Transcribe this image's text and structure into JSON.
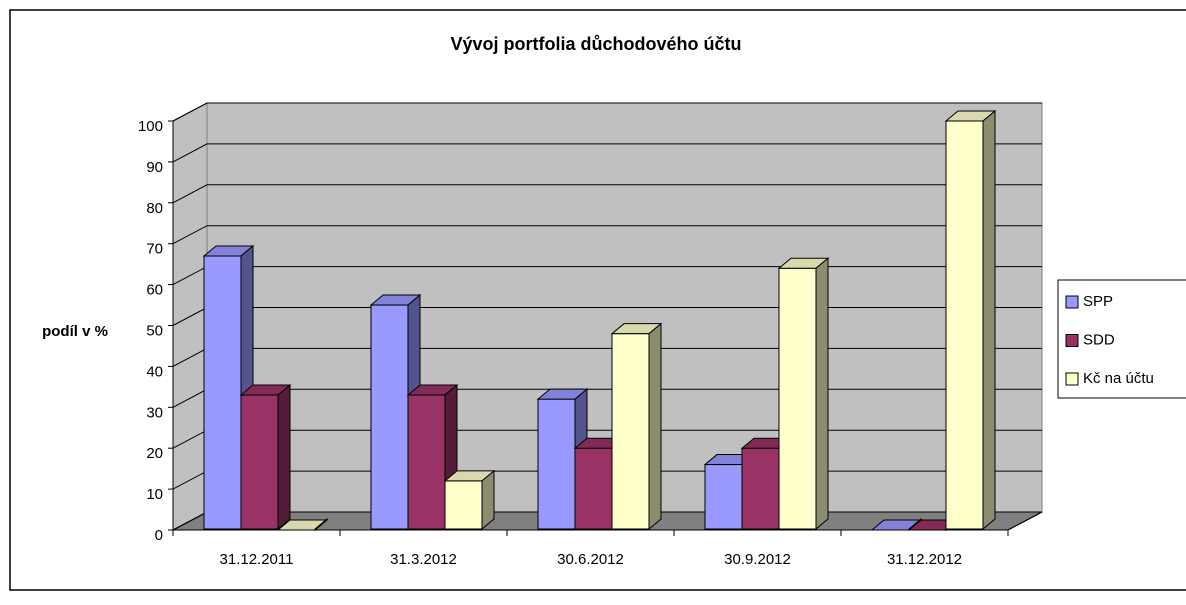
{
  "chart_data": {
    "type": "bar3d",
    "title": "Vývoj portfolia důchodového účtu",
    "y_label": "podíl v %",
    "categories": [
      "31.12.2011",
      "31.3.2012",
      "30.6.2012",
      "30.9.2012",
      "31.12.2012"
    ],
    "series": [
      {
        "name": "SPP",
        "color": "#9999ff",
        "values": [
          67,
          55,
          32,
          16,
          0
        ]
      },
      {
        "name": "SDD",
        "color": "#993366",
        "values": [
          33,
          33,
          20,
          20,
          0
        ]
      },
      {
        "name": "Kč na účtu",
        "color": "#ffffcc",
        "values": [
          0,
          12,
          48,
          64,
          100
        ]
      }
    ],
    "ylim": [
      0,
      100
    ],
    "yticks": [
      0,
      10,
      20,
      30,
      40,
      50,
      60,
      70,
      80,
      90,
      100
    ],
    "grid": true,
    "legend": "right"
  }
}
